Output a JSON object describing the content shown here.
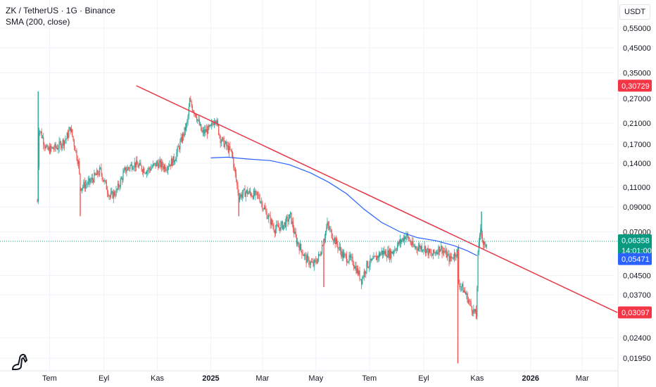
{
  "header": {
    "symbol_line": "ZK / TetherUS · 1G · Binance",
    "indicator_line": "SMA (200, close)",
    "currency": "USDT"
  },
  "colors": {
    "up": "#26a69a",
    "down": "#ef5350",
    "sma": "#2962ff",
    "trendline": "#e53945",
    "grid": "#f0f3fa",
    "axis_text": "#131722"
  },
  "chart_data": {
    "type": "candlestick",
    "y_scale": "log",
    "ylim": [
      0.0182,
      0.62
    ],
    "y_ticks": [
      "0,55000",
      "0,45000",
      "0,35000",
      "0,27000",
      "0,21000",
      "0,17000",
      "0,14000",
      "0,11000",
      "0,09000",
      "0,07000",
      "0,04500",
      "0,03700",
      "0,02400",
      "0,01950"
    ],
    "x_ticks": [
      "Tem",
      "Eyl",
      "Kas",
      "2025",
      "Mar",
      "May",
      "Tem",
      "Eyl",
      "Kas",
      "2026",
      "Mar"
    ],
    "x_range": [
      "2024-06-17",
      "2026-04-10"
    ],
    "price_labels": [
      {
        "name": "trendline-upper",
        "text": "0,30729",
        "color": "#f23645"
      },
      {
        "name": "last-price",
        "text": "0,06358",
        "sub": "14:01:00",
        "color": "#089981"
      },
      {
        "name": "sma-value",
        "text": "0,05471",
        "color": "#2962ff"
      },
      {
        "name": "trendline-lower",
        "text": "0,03097",
        "color": "#f23645"
      }
    ],
    "last_price": 0.06358,
    "series": [
      {
        "name": "SMA (200, close)",
        "points": [
          [
            "2025-01-01",
            0.148
          ],
          [
            "2025-01-20",
            0.149
          ],
          [
            "2025-02-15",
            0.146
          ],
          [
            "2025-03-10",
            0.144
          ],
          [
            "2025-04-01",
            0.138
          ],
          [
            "2025-04-25",
            0.127
          ],
          [
            "2025-05-15",
            0.116
          ],
          [
            "2025-06-05",
            0.103
          ],
          [
            "2025-06-25",
            0.088
          ],
          [
            "2025-07-15",
            0.077
          ],
          [
            "2025-08-05",
            0.07
          ],
          [
            "2025-08-25",
            0.066
          ],
          [
            "2025-09-15",
            0.064
          ],
          [
            "2025-10-05",
            0.061
          ],
          [
            "2025-10-20",
            0.058
          ],
          [
            "2025-11-01",
            0.055
          ]
        ]
      },
      {
        "name": "trendline",
        "points": [
          [
            "2024-10-08",
            0.30729
          ],
          [
            "2026-04-10",
            0.03097
          ]
        ]
      }
    ],
    "candles_anchors": [
      [
        "2024-06-17",
        0.095,
        0.29
      ],
      [
        "2024-06-19",
        0.2
      ],
      [
        "2024-06-28",
        0.16
      ],
      [
        "2024-07-10",
        0.165
      ],
      [
        "2024-07-20",
        0.18
      ],
      [
        "2024-07-25",
        0.2
      ],
      [
        "2024-08-03",
        0.14
      ],
      [
        "2024-08-05",
        0.11
      ],
      [
        "2024-08-15",
        0.115
      ],
      [
        "2024-08-28",
        0.13
      ],
      [
        "2024-09-08",
        0.1
      ],
      [
        "2024-09-15",
        0.105
      ],
      [
        "2024-09-25",
        0.13
      ],
      [
        "2024-10-05",
        0.14
      ],
      [
        "2024-10-20",
        0.13
      ],
      [
        "2024-11-01",
        0.14
      ],
      [
        "2024-11-10",
        0.135
      ],
      [
        "2024-11-20",
        0.145
      ],
      [
        "2024-11-28",
        0.175
      ],
      [
        "2024-12-05",
        0.21
      ],
      [
        "2024-12-08",
        0.26
      ],
      [
        "2024-12-15",
        0.23
      ],
      [
        "2024-12-22",
        0.19
      ],
      [
        "2025-01-01",
        0.2
      ],
      [
        "2025-01-06",
        0.225
      ],
      [
        "2025-01-12",
        0.18
      ],
      [
        "2025-01-25",
        0.155
      ],
      [
        "2025-02-02",
        0.1
      ],
      [
        "2025-02-10",
        0.105
      ],
      [
        "2025-02-25",
        0.1
      ],
      [
        "2025-03-05",
        0.085
      ],
      [
        "2025-03-15",
        0.072
      ],
      [
        "2025-03-25",
        0.075
      ],
      [
        "2025-04-02",
        0.082
      ],
      [
        "2025-04-08",
        0.065
      ],
      [
        "2025-04-20",
        0.053
      ],
      [
        "2025-04-28",
        0.05
      ],
      [
        "2025-05-05",
        0.055
      ],
      [
        "2025-05-14",
        0.075
      ],
      [
        "2025-05-22",
        0.065
      ],
      [
        "2025-06-01",
        0.055
      ],
      [
        "2025-06-12",
        0.052
      ],
      [
        "2025-06-22",
        0.043
      ],
      [
        "2025-06-28",
        0.05
      ],
      [
        "2025-07-05",
        0.052
      ],
      [
        "2025-07-15",
        0.057
      ],
      [
        "2025-07-25",
        0.056
      ],
      [
        "2025-08-05",
        0.063
      ],
      [
        "2025-08-12",
        0.068
      ],
      [
        "2025-08-20",
        0.06
      ],
      [
        "2025-09-01",
        0.06
      ],
      [
        "2025-09-10",
        0.055
      ],
      [
        "2025-09-20",
        0.06
      ],
      [
        "2025-10-01",
        0.053
      ],
      [
        "2025-10-10",
        0.058
      ],
      [
        "2025-10-11",
        0.042
      ],
      [
        "2025-10-18",
        0.038
      ],
      [
        "2025-10-25",
        0.033
      ],
      [
        "2025-10-31",
        0.03
      ],
      [
        "2025-11-02",
        0.055
      ],
      [
        "2025-11-05",
        0.075
      ],
      [
        "2025-11-08",
        0.06
      ],
      [
        "2025-11-12",
        0.06358
      ]
    ],
    "wick_extremes": [
      {
        "date": "2024-06-18",
        "high": 0.29,
        "low": 0.095
      },
      {
        "date": "2024-08-05",
        "low": 0.082
      },
      {
        "date": "2024-12-08",
        "high": 0.272
      },
      {
        "date": "2025-02-02",
        "low": 0.082
      },
      {
        "date": "2025-05-10",
        "low": 0.04
      },
      {
        "date": "2025-10-10",
        "low": 0.0185
      },
      {
        "date": "2025-10-31",
        "low": 0.029
      },
      {
        "date": "2025-11-06",
        "high": 0.086
      }
    ]
  }
}
